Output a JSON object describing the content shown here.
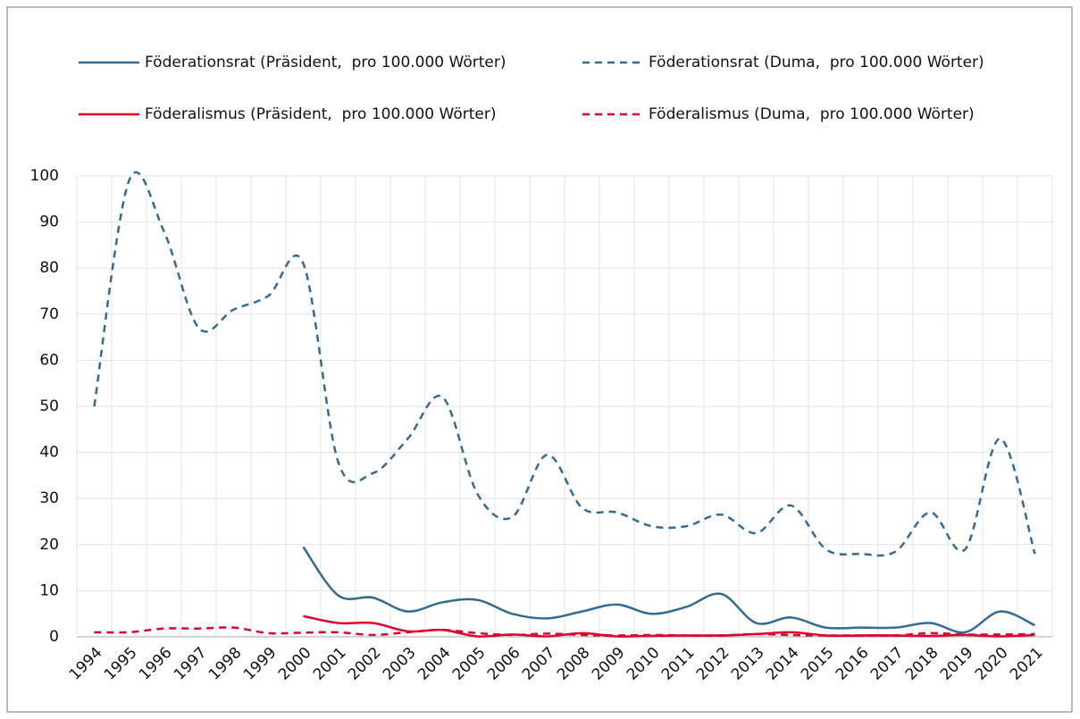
{
  "chart_data": {
    "type": "line",
    "categories": [
      "1994",
      "1995",
      "1996",
      "1997",
      "1998",
      "1999",
      "2000",
      "2001",
      "2002",
      "2003",
      "2004",
      "2005",
      "2006",
      "2007",
      "2008",
      "2009",
      "2010",
      "2011",
      "2012",
      "2013",
      "2014",
      "2015",
      "2016",
      "2017",
      "2018",
      "2019",
      "2020",
      "2021"
    ],
    "series": [
      {
        "name": "Föderationsrat (Präsident,  pro 100.000 Wörter)",
        "color": "#336b95",
        "dashed": false,
        "values": [
          null,
          null,
          null,
          null,
          null,
          null,
          19.5,
          9,
          8.5,
          5.5,
          7.5,
          8,
          5,
          4,
          5.5,
          7,
          5,
          6.5,
          9.3,
          3,
          4.2,
          2,
          2,
          2,
          3,
          1,
          5.5,
          2.5
        ]
      },
      {
        "name": "Föderationsrat (Duma,  pro 100.000 Wörter)",
        "color": "#336b95",
        "dashed": true,
        "values": [
          50,
          99,
          88,
          67,
          71,
          74,
          81,
          38,
          35.5,
          43,
          52,
          31,
          26,
          39.5,
          28,
          27,
          24,
          24,
          26.5,
          22.5,
          28.5,
          19,
          18,
          18.5,
          27,
          19,
          43,
          18
        ]
      },
      {
        "name": "Föderalismus (Präsident,  pro 100.000 Wörter)",
        "color": "#e0002a",
        "dashed": false,
        "values": [
          null,
          null,
          null,
          null,
          null,
          null,
          4.5,
          3,
          3,
          1.2,
          1.5,
          0.1,
          0.5,
          0.1,
          0.8,
          0.1,
          0.2,
          0.3,
          0.3,
          0.6,
          1,
          0.3,
          0.3,
          0.3,
          0.2,
          0.4,
          0.1,
          0.4
        ]
      },
      {
        "name": "Föderalismus (Duma,  pro 100.000 Wörter)",
        "color": "#e0002a",
        "dashed": true,
        "values": [
          1,
          1,
          1.8,
          1.8,
          2,
          0.8,
          0.9,
          1,
          0.4,
          1,
          1.5,
          0.8,
          0.4,
          0.7,
          0.4,
          0.3,
          0.4,
          0.3,
          0.3,
          0.6,
          0.4,
          0.3,
          0.3,
          0.3,
          0.8,
          0.5,
          0.5,
          0.6
        ]
      }
    ],
    "ylim": [
      0,
      100
    ],
    "yticks": [
      0,
      10,
      20,
      30,
      40,
      50,
      60,
      70,
      80,
      90,
      100
    ],
    "grid": true,
    "legend": "top"
  }
}
